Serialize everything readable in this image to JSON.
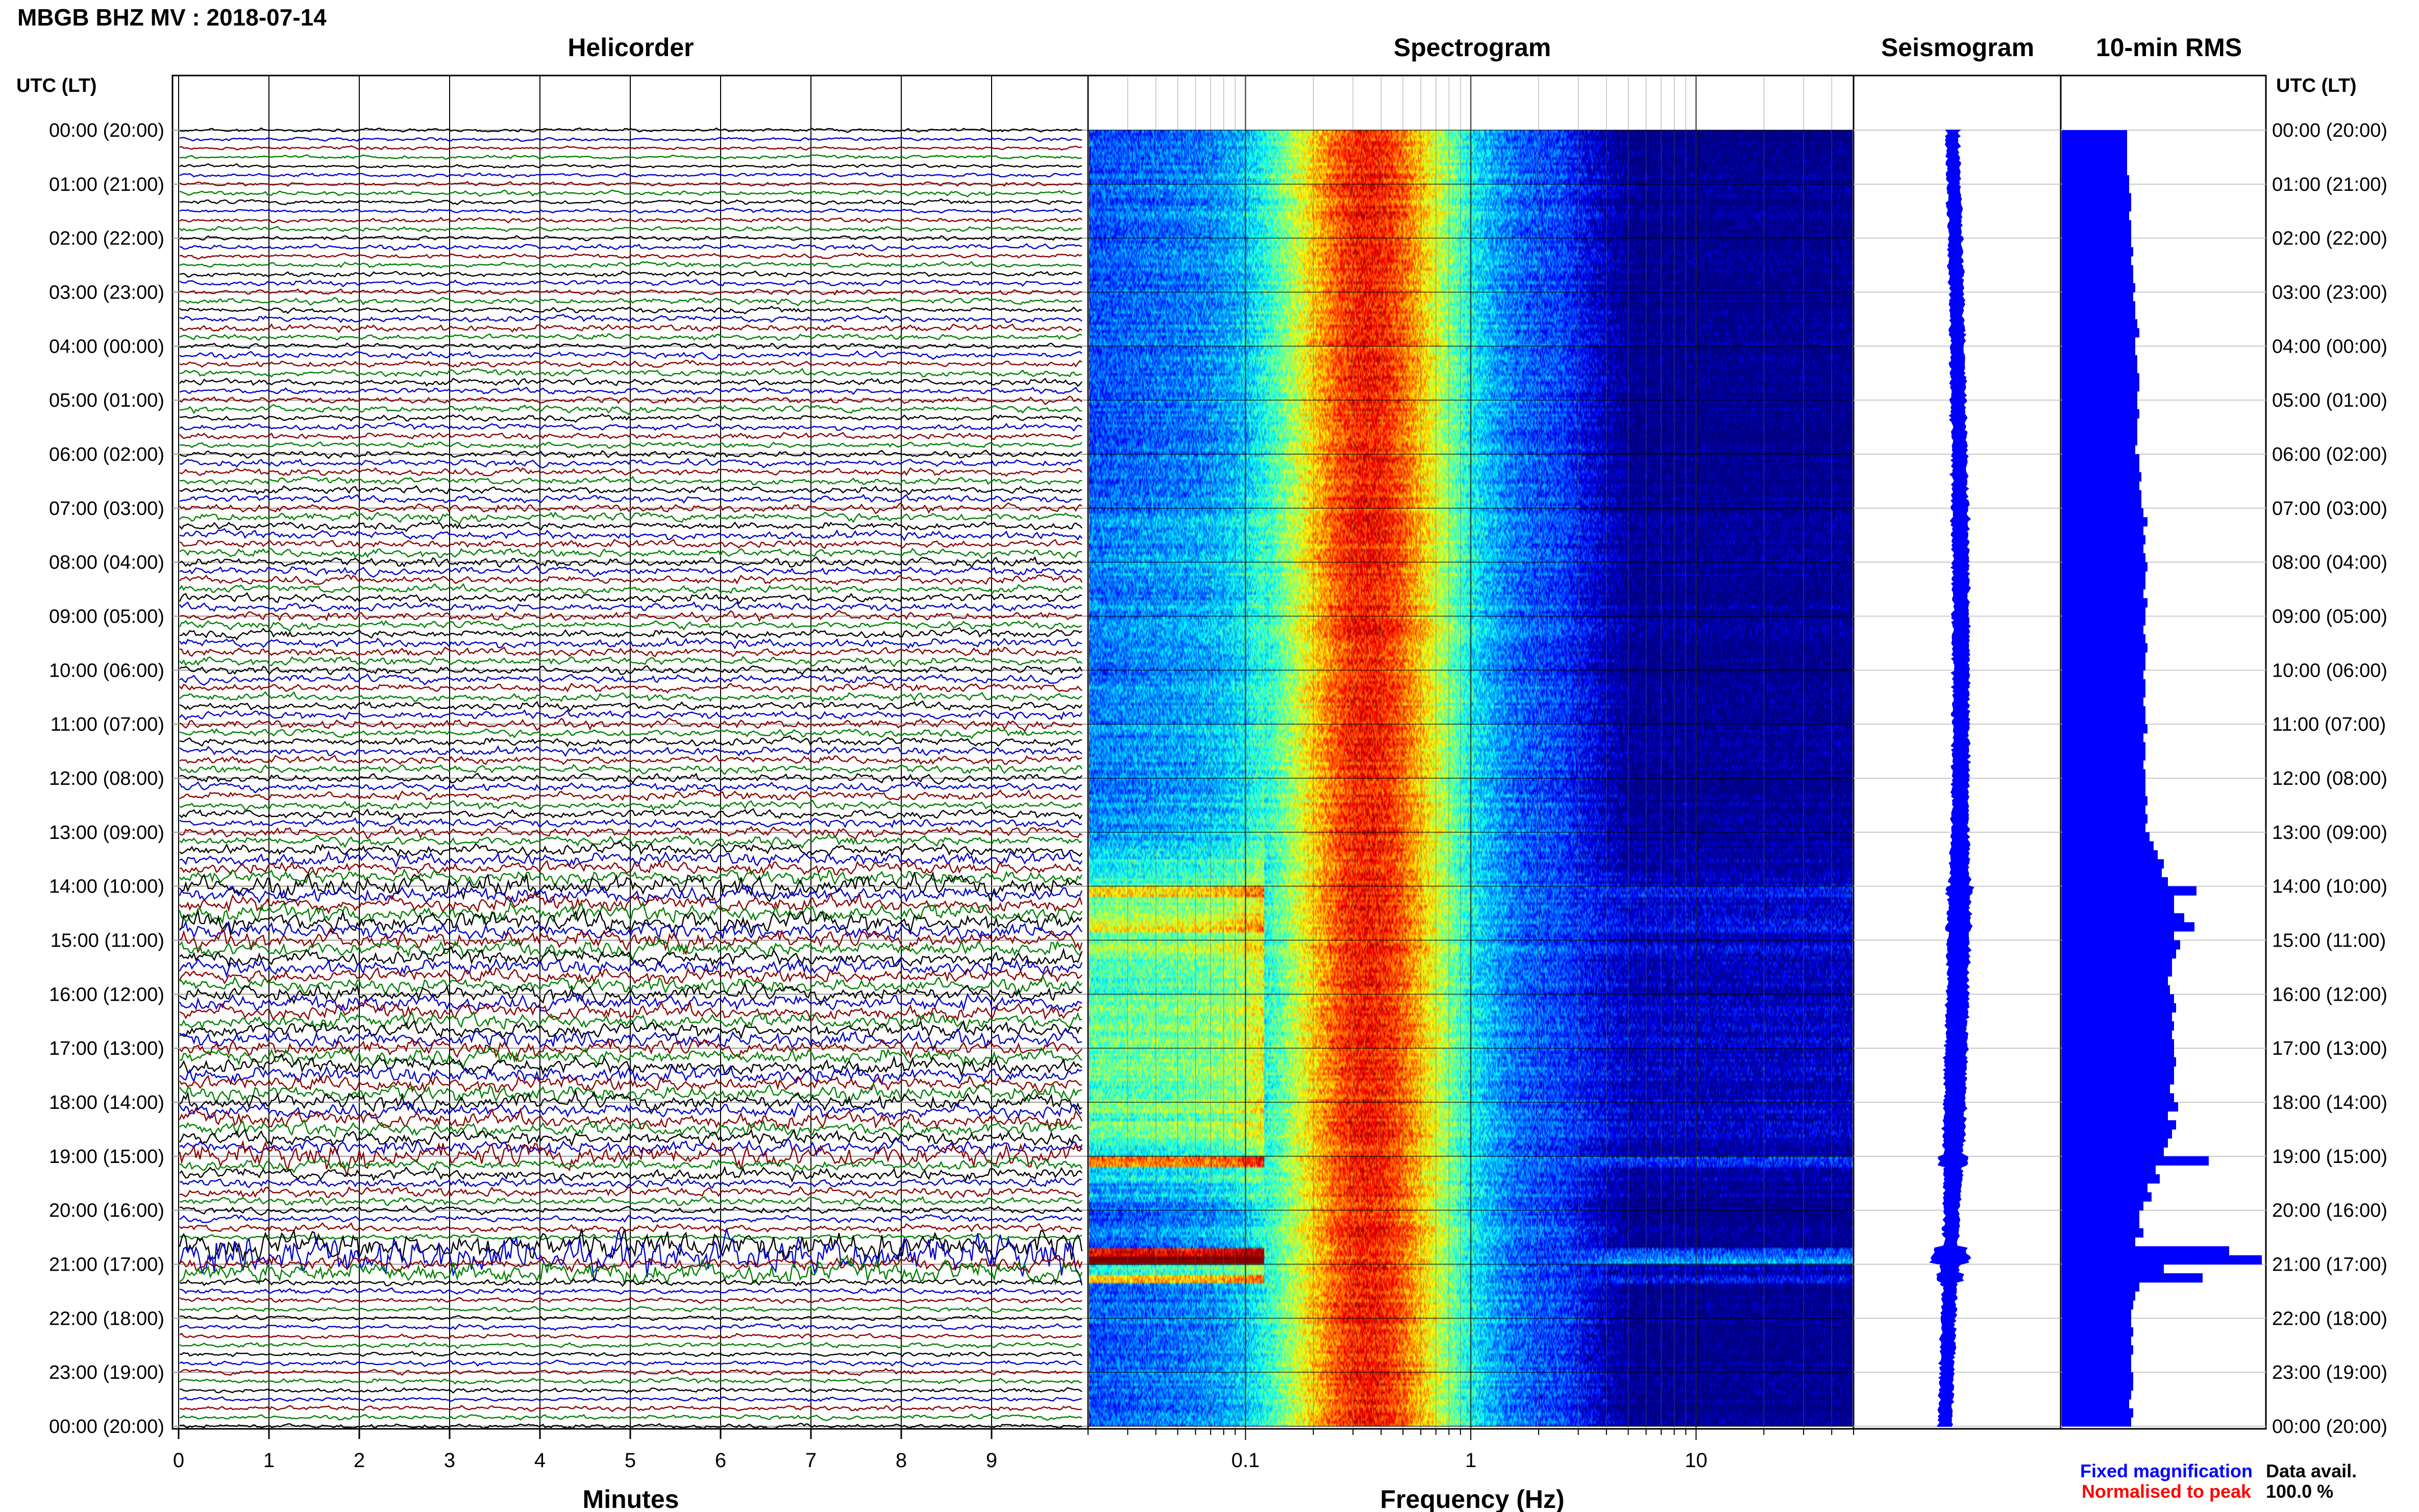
{
  "header": {
    "station_title": "MBGB BHZ MV : 2018-07-14",
    "utc_label_left": "UTC (LT)",
    "utc_label_right": "UTC (LT)"
  },
  "panels": {
    "helicorder": {
      "title": "Helicorder",
      "xlabel": "Minutes"
    },
    "spectrogram": {
      "title": "Spectrogram",
      "xlabel": "Frequency (Hz)"
    },
    "seismogram": {
      "title": "Seismogram"
    },
    "rms": {
      "title": "10-min RMS"
    }
  },
  "footer": {
    "fixed_magnification": "Fixed magnification",
    "normalised_to_peak": "Normalised to peak",
    "data_avail_label": "Data avail.",
    "data_avail_value": "100.0 %"
  },
  "colors": {
    "fixed_magnification": "#0000ff",
    "normalised_to_peak": "#ff0000",
    "trace_colors": [
      "#000000",
      "#0000cc",
      "#8b0000",
      "#008000"
    ],
    "seismogram": "#0000ff",
    "rms_bar": "#0000ff",
    "spectrogram_background": "#00007f"
  },
  "chart_data": [
    {
      "type": "line",
      "panel": "helicorder",
      "title": "Helicorder",
      "xlabel": "Minutes",
      "x_ticks": [
        "0",
        "1",
        "2",
        "3",
        "4",
        "5",
        "6",
        "7",
        "8",
        "9"
      ],
      "xlim": [
        0,
        10
      ],
      "hour_labels": [
        "00:00 (20:00)",
        "01:00 (21:00)",
        "02:00 (22:00)",
        "03:00 (23:00)",
        "04:00 (00:00)",
        "05:00 (01:00)",
        "06:00 (02:00)",
        "07:00 (03:00)",
        "08:00 (04:00)",
        "09:00 (05:00)",
        "10:00 (06:00)",
        "11:00 (07:00)",
        "12:00 (08:00)",
        "13:00 (09:00)",
        "14:00 (10:00)",
        "15:00 (11:00)",
        "16:00 (12:00)",
        "17:00 (13:00)",
        "18:00 (14:00)",
        "19:00 (15:00)",
        "20:00 (16:00)",
        "21:00 (17:00)",
        "22:00 (18:00)",
        "23:00 (19:00)",
        "00:00 (20:00)"
      ],
      "trace_rows": 144,
      "grid": true
    },
    {
      "type": "heatmap",
      "panel": "spectrogram",
      "title": "Spectrogram",
      "xlabel": "Frequency (Hz)",
      "x_scale": "log",
      "xlim": [
        0.02,
        50
      ],
      "x_ticks": [
        "0.1",
        "1",
        "10"
      ],
      "grid": true
    },
    {
      "type": "line",
      "panel": "seismogram",
      "title": "Seismogram",
      "grid": true
    },
    {
      "type": "bar",
      "panel": "rms",
      "title": "10-min RMS",
      "orientation": "horizontal",
      "xlim": [
        0,
        1
      ],
      "values": [
        0.32,
        0.32,
        0.32,
        0.32,
        0.32,
        0.33,
        0.33,
        0.34,
        0.34,
        0.33,
        0.34,
        0.34,
        0.34,
        0.35,
        0.34,
        0.35,
        0.35,
        0.36,
        0.35,
        0.36,
        0.36,
        0.37,
        0.38,
        0.36,
        0.36,
        0.37,
        0.37,
        0.38,
        0.38,
        0.37,
        0.37,
        0.38,
        0.37,
        0.37,
        0.37,
        0.36,
        0.38,
        0.38,
        0.39,
        0.38,
        0.39,
        0.39,
        0.4,
        0.42,
        0.4,
        0.41,
        0.4,
        0.41,
        0.42,
        0.41,
        0.41,
        0.4,
        0.42,
        0.41,
        0.41,
        0.4,
        0.41,
        0.42,
        0.41,
        0.41,
        0.4,
        0.41,
        0.41,
        0.4,
        0.41,
        0.41,
        0.42,
        0.4,
        0.41,
        0.41,
        0.4,
        0.41,
        0.41,
        0.41,
        0.42,
        0.41,
        0.42,
        0.41,
        0.43,
        0.45,
        0.47,
        0.5,
        0.49,
        0.52,
        0.66,
        0.55,
        0.55,
        0.6,
        0.65,
        0.55,
        0.58,
        0.56,
        0.54,
        0.54,
        0.52,
        0.53,
        0.55,
        0.56,
        0.54,
        0.55,
        0.54,
        0.55,
        0.55,
        0.56,
        0.55,
        0.55,
        0.53,
        0.55,
        0.57,
        0.52,
        0.56,
        0.54,
        0.52,
        0.5,
        0.72,
        0.46,
        0.48,
        0.42,
        0.44,
        0.4,
        0.38,
        0.38,
        0.4,
        0.36,
        0.82,
        0.98,
        0.5,
        0.69,
        0.38,
        0.36,
        0.35,
        0.34,
        0.34,
        0.35,
        0.34,
        0.35,
        0.34,
        0.34,
        0.35,
        0.35,
        0.34,
        0.33,
        0.35,
        0.34
      ],
      "grid": true
    }
  ]
}
